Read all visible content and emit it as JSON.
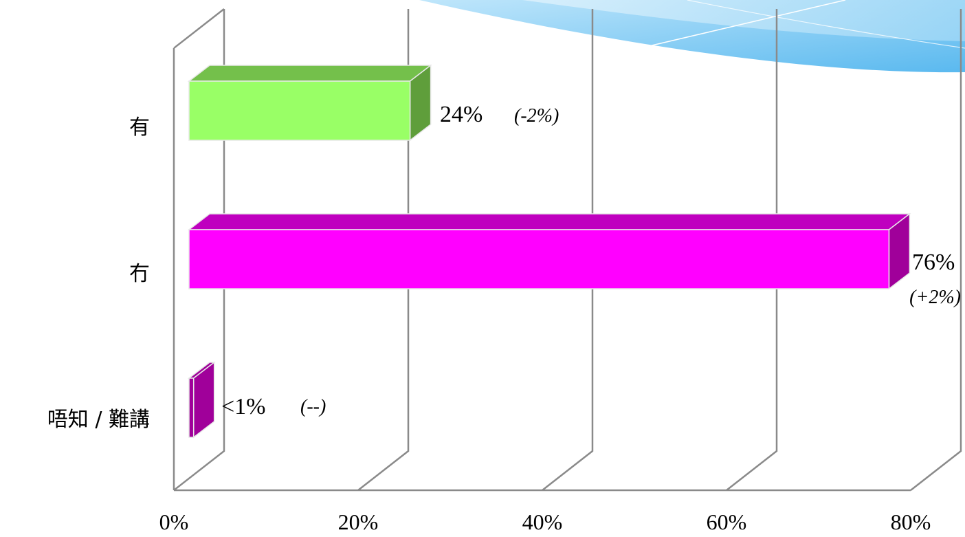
{
  "chart_data": {
    "type": "bar",
    "orientation": "horizontal",
    "style": "3d",
    "categories": [
      "有",
      "冇",
      "唔知 / 難講"
    ],
    "values": [
      24,
      76,
      0.5
    ],
    "value_labels": [
      "24%",
      "76%",
      "<1%"
    ],
    "change_labels": [
      "(-2%)",
      "(+2%)",
      "(--)"
    ],
    "colors": {
      "front": [
        "#99ff66",
        "#ff00ff",
        "#a0009a"
      ],
      "top": [
        "#74c04b",
        "#bf00bf",
        "#a0009a"
      ],
      "side": [
        "#5f9e3b",
        "#a0009a",
        "#a0009a"
      ]
    },
    "xticks": [
      0,
      20,
      40,
      60,
      80
    ],
    "xtick_labels": [
      "0%",
      "20%",
      "40%",
      "60%",
      "80%"
    ],
    "xlim": [
      0,
      80
    ],
    "grid": true,
    "title": "",
    "xlabel": "",
    "ylabel": ""
  }
}
